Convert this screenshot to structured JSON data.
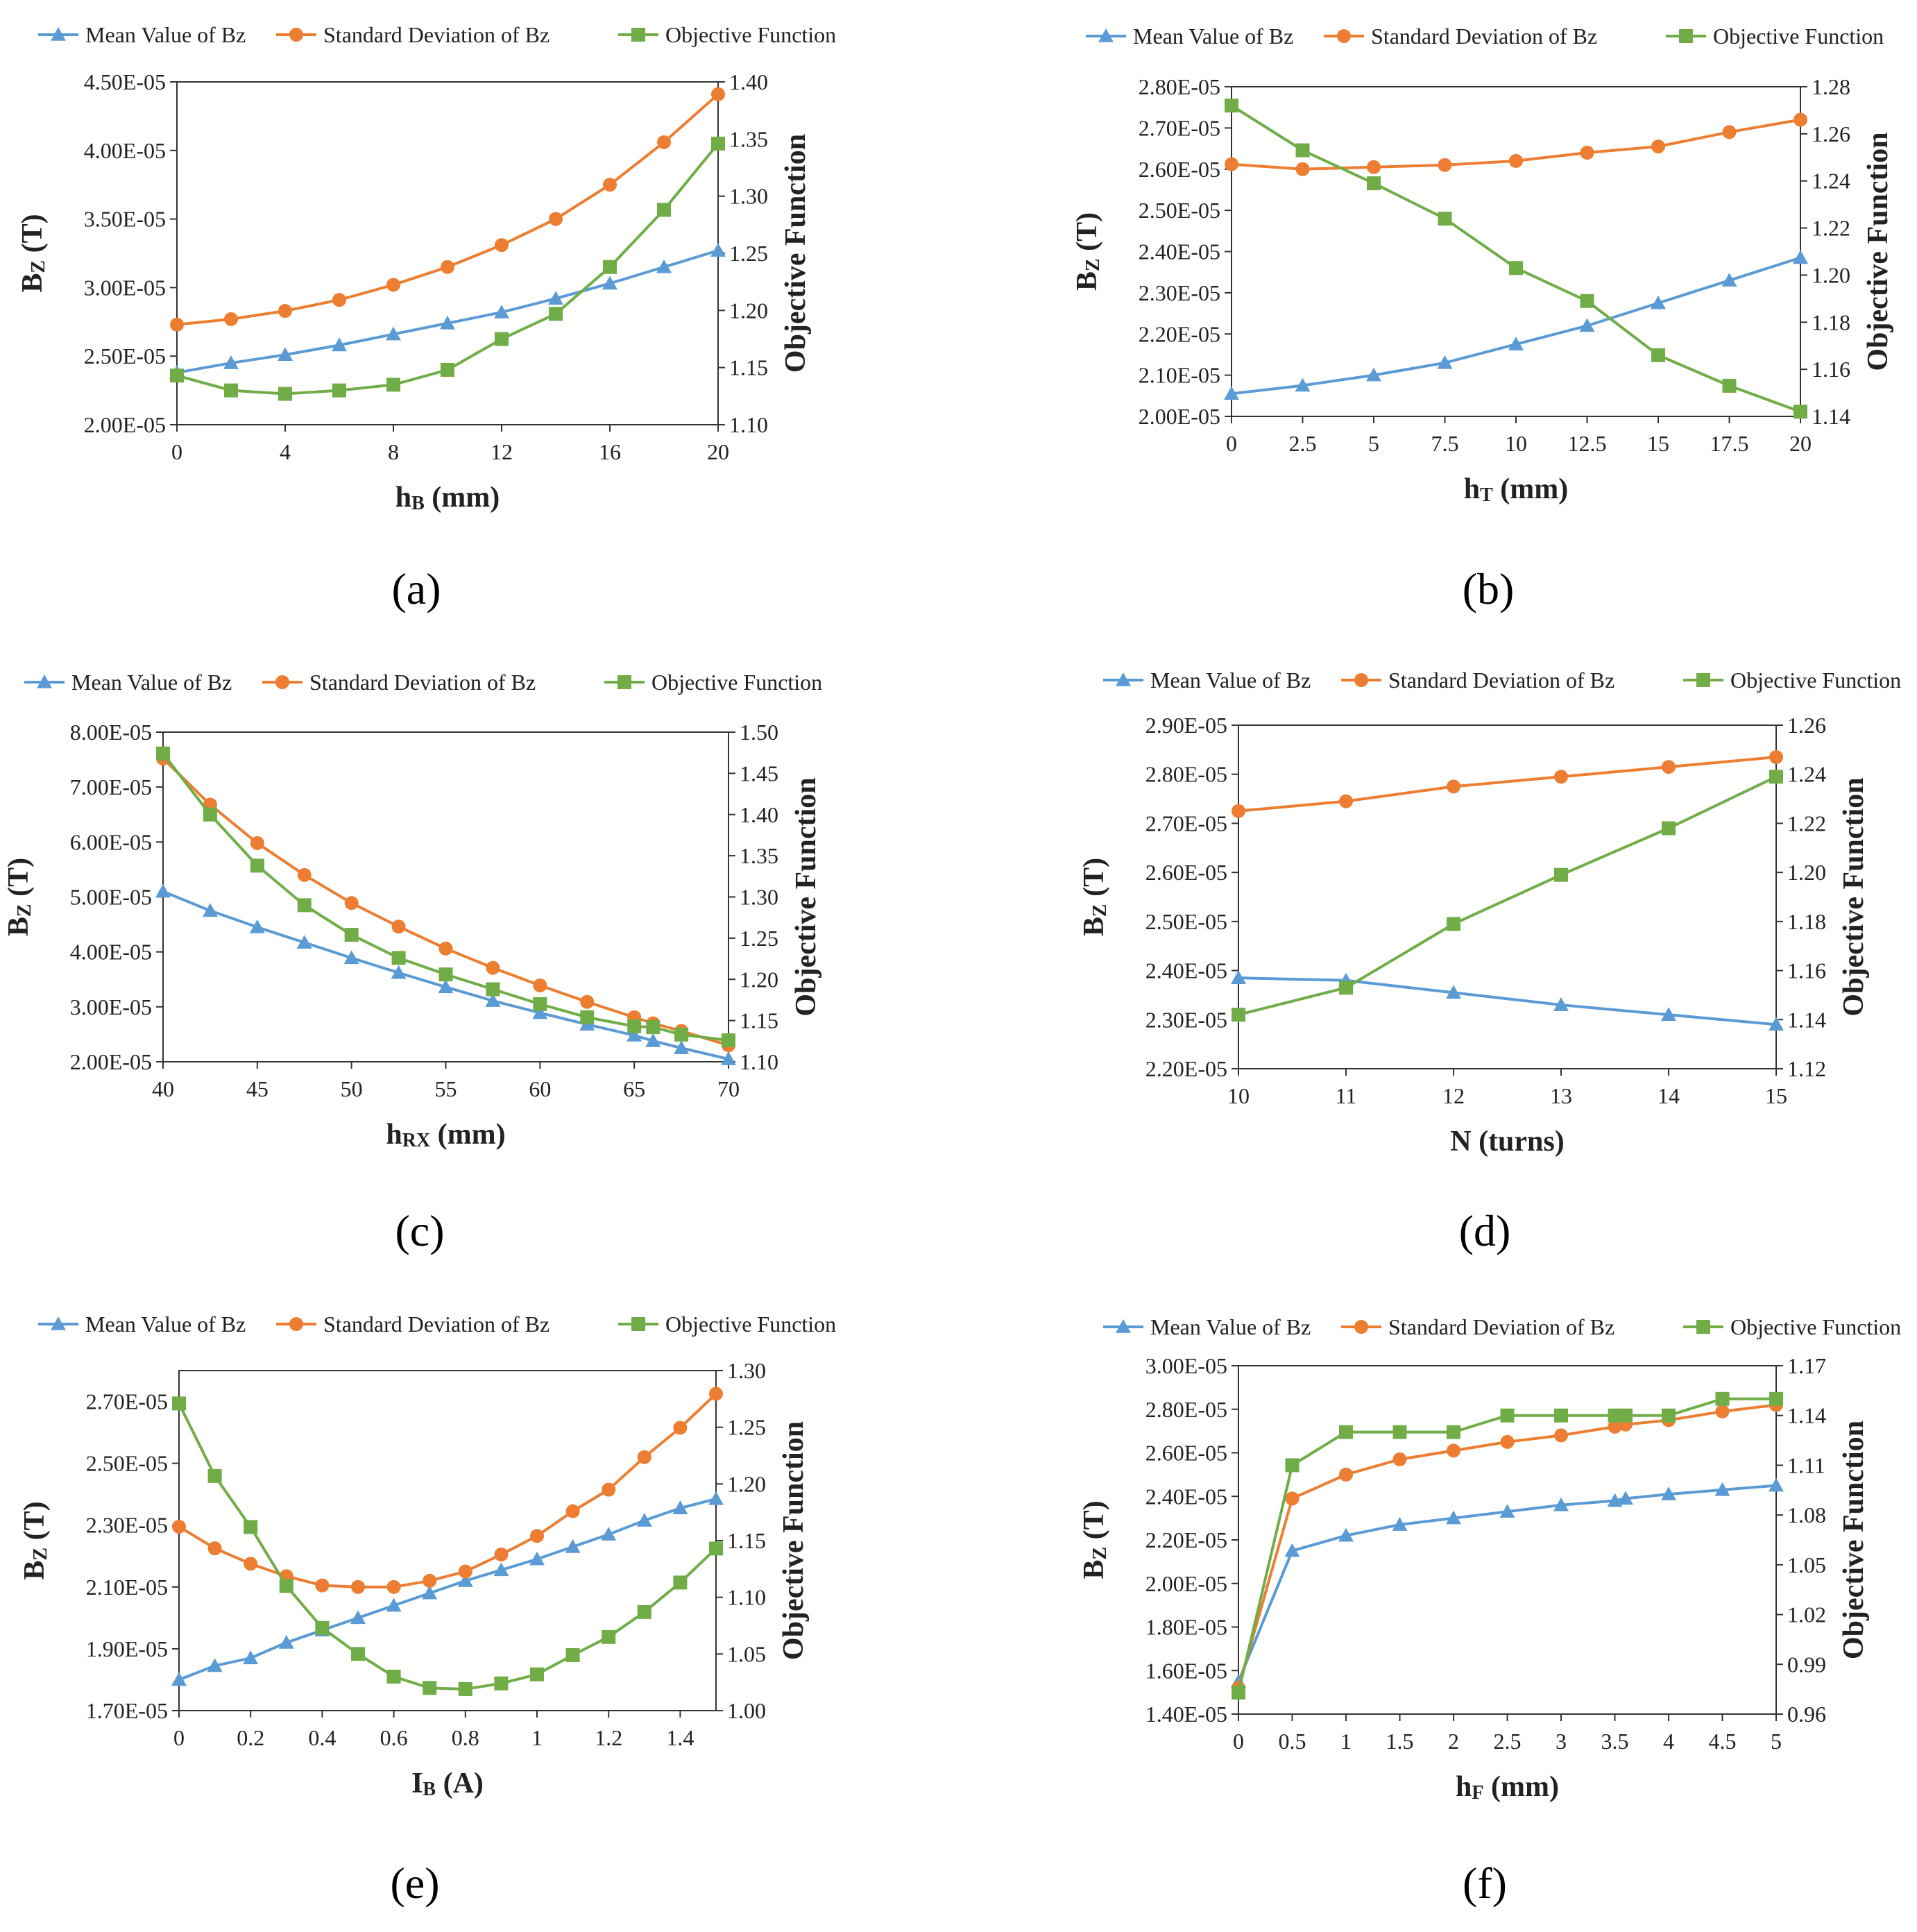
{
  "figure": {
    "legend": {
      "mean": "Mean Value of Bz",
      "std": "Standard Deviation of Bz",
      "obj": "Objective Function"
    },
    "colors": {
      "mean": "#5b9bd5",
      "std": "#ed7d31",
      "obj": "#70ad47",
      "axis": "#333333",
      "grid": "#dddddd"
    },
    "icons": {
      "mean": "triangle-marker",
      "std": "circle-marker",
      "obj": "square-marker"
    }
  },
  "chart_data": [
    {
      "type": "line",
      "panel": "(a)",
      "xlabel_main": "h",
      "xlabel_sub": "B",
      "xlabel_unit": " (mm)",
      "ylabel_main": "B",
      "ylabel_sub": "Z",
      "ylabel_unit": " (T)",
      "y2label": "Objective Function",
      "xlim": [
        0,
        20
      ],
      "xticks": [
        0,
        4,
        8,
        12,
        16,
        20
      ],
      "xtick_labels": [
        "0",
        "4",
        "8",
        "12",
        "16",
        "20"
      ],
      "ylim": [
        2e-05,
        4.5e-05
      ],
      "yticks": [
        2e-05,
        2.5e-05,
        3e-05,
        3.5e-05,
        4e-05,
        4.5e-05
      ],
      "ytick_labels": [
        "2.00E-05",
        "2.50E-05",
        "3.00E-05",
        "3.50E-05",
        "4.00E-05",
        "4.50E-05"
      ],
      "y2lim": [
        1.1,
        1.4
      ],
      "y2ticks": [
        1.1,
        1.15,
        1.2,
        1.25,
        1.3,
        1.35,
        1.4
      ],
      "y2tick_labels": [
        "1.10",
        "1.15",
        "1.20",
        "1.25",
        "1.30",
        "1.35",
        "1.40"
      ],
      "x": [
        0,
        2,
        4,
        6,
        8,
        10,
        12,
        14,
        16,
        18,
        20
      ],
      "series": [
        {
          "name": "Mean Value of Bz",
          "axis": "left",
          "values": [
            2.38e-05,
            2.45e-05,
            2.51e-05,
            2.58e-05,
            2.66e-05,
            2.74e-05,
            2.82e-05,
            2.92e-05,
            3.03e-05,
            3.15e-05,
            3.27e-05
          ]
        },
        {
          "name": "Standard Deviation of Bz",
          "axis": "left",
          "values": [
            2.73e-05,
            2.77e-05,
            2.83e-05,
            2.91e-05,
            3.02e-05,
            3.15e-05,
            3.31e-05,
            3.5e-05,
            3.75e-05,
            4.06e-05,
            4.41e-05
          ]
        },
        {
          "name": "Objective Function",
          "axis": "right",
          "values": [
            1.143,
            1.13,
            1.127,
            1.13,
            1.135,
            1.148,
            1.175,
            1.197,
            1.238,
            1.288,
            1.346
          ]
        }
      ]
    },
    {
      "type": "line",
      "panel": "(b)",
      "xlabel_main": "h",
      "xlabel_sub": "T",
      "xlabel_unit": " (mm)",
      "ylabel_main": "B",
      "ylabel_sub": "Z",
      "ylabel_unit": " (T)",
      "y2label": "Objective Function",
      "xlim": [
        0,
        20
      ],
      "xticks": [
        0,
        2.5,
        5,
        7.5,
        10,
        12.5,
        15,
        17.5,
        20
      ],
      "xtick_labels": [
        "0",
        "2.5",
        "5",
        "7.5",
        "10",
        "12.5",
        "15",
        "17.5",
        "20"
      ],
      "ylim": [
        2e-05,
        2.8e-05
      ],
      "yticks": [
        2e-05,
        2.1e-05,
        2.2e-05,
        2.3e-05,
        2.4e-05,
        2.5e-05,
        2.6e-05,
        2.7e-05,
        2.8e-05
      ],
      "ytick_labels": [
        "2.00E-05",
        "2.10E-05",
        "2.20E-05",
        "2.30E-05",
        "2.40E-05",
        "2.50E-05",
        "2.60E-05",
        "2.70E-05",
        "2.80E-05"
      ],
      "y2lim": [
        1.14,
        1.28
      ],
      "y2ticks": [
        1.14,
        1.16,
        1.18,
        1.2,
        1.22,
        1.24,
        1.26,
        1.28
      ],
      "y2tick_labels": [
        "1.14",
        "1.16",
        "1.18",
        "1.20",
        "1.22",
        "1.24",
        "1.26",
        "1.28"
      ],
      "x": [
        0,
        2.5,
        5,
        7.5,
        10,
        12.5,
        15,
        17.5,
        20
      ],
      "series": [
        {
          "name": "Mean Value of Bz",
          "axis": "left",
          "values": [
            2.055e-05,
            2.075e-05,
            2.1e-05,
            2.13e-05,
            2.175e-05,
            2.22e-05,
            2.275e-05,
            2.33e-05,
            2.385e-05
          ]
        },
        {
          "name": "Standard Deviation of Bz",
          "axis": "left",
          "values": [
            2.612e-05,
            2.6e-05,
            2.605e-05,
            2.61e-05,
            2.62e-05,
            2.64e-05,
            2.655e-05,
            2.69e-05,
            2.72e-05
          ]
        },
        {
          "name": "Objective Function",
          "axis": "right",
          "values": [
            1.272,
            1.253,
            1.239,
            1.224,
            1.203,
            1.189,
            1.166,
            1.153,
            1.142
          ]
        }
      ]
    },
    {
      "type": "line",
      "panel": "(c)",
      "xlabel_main": "h",
      "xlabel_sub": "RX",
      "xlabel_unit": " (mm)",
      "ylabel_main": "B",
      "ylabel_sub": "Z",
      "ylabel_unit": " (T)",
      "y2label": "Objective Function",
      "xlim": [
        40,
        70
      ],
      "xticks": [
        40,
        45,
        50,
        55,
        60,
        65,
        70
      ],
      "xtick_labels": [
        "40",
        "45",
        "50",
        "55",
        "60",
        "65",
        "70"
      ],
      "ylim": [
        2e-05,
        8e-05
      ],
      "yticks": [
        2e-05,
        3e-05,
        4e-05,
        5e-05,
        6e-05,
        7e-05,
        8e-05
      ],
      "ytick_labels": [
        "2.00E-05",
        "3.00E-05",
        "4.00E-05",
        "5.00E-05",
        "6.00E-05",
        "7.00E-05",
        "8.00E-05"
      ],
      "y2lim": [
        1.1,
        1.5
      ],
      "y2ticks": [
        1.1,
        1.15,
        1.2,
        1.25,
        1.3,
        1.35,
        1.4,
        1.45,
        1.5
      ],
      "y2tick_labels": [
        "1.10",
        "1.15",
        "1.20",
        "1.25",
        "1.30",
        "1.35",
        "1.40",
        "1.45",
        "1.50"
      ],
      "x": [
        40,
        42.5,
        45,
        47.5,
        50,
        52.5,
        55,
        57.5,
        60,
        62.5,
        65,
        66,
        67.5,
        70
      ],
      "series": [
        {
          "name": "Mean Value of Bz",
          "axis": "left",
          "values": [
            5.1e-05,
            4.75e-05,
            4.45e-05,
            4.17e-05,
            3.89e-05,
            3.62e-05,
            3.36e-05,
            3.11e-05,
            2.89e-05,
            2.68e-05,
            2.48e-05,
            2.38e-05,
            2.25e-05,
            2.05e-05
          ]
        },
        {
          "name": "Standard Deviation of Bz",
          "axis": "left",
          "values": [
            7.52e-05,
            6.68e-05,
            5.98e-05,
            5.4e-05,
            4.89e-05,
            4.46e-05,
            4.06e-05,
            3.71e-05,
            3.39e-05,
            3.09e-05,
            2.81e-05,
            2.7e-05,
            2.56e-05,
            2.3e-05
          ]
        },
        {
          "name": "Objective Function",
          "axis": "right",
          "values": [
            1.474,
            1.4,
            1.338,
            1.29,
            1.254,
            1.226,
            1.206,
            1.188,
            1.17,
            1.154,
            1.143,
            1.142,
            1.133,
            1.126
          ]
        }
      ]
    },
    {
      "type": "line",
      "panel": "(d)",
      "xlabel_main": "N",
      "xlabel_sub": "",
      "xlabel_unit": " (turns)",
      "ylabel_main": "B",
      "ylabel_sub": "Z",
      "ylabel_unit": " (T)",
      "y2label": "Objective Function",
      "xlim": [
        10,
        15
      ],
      "xticks": [
        10,
        11,
        12,
        13,
        14,
        15
      ],
      "xtick_labels": [
        "10",
        "11",
        "12",
        "13",
        "14",
        "15"
      ],
      "ylim": [
        2.2e-05,
        2.9e-05
      ],
      "yticks": [
        2.2e-05,
        2.3e-05,
        2.4e-05,
        2.5e-05,
        2.6e-05,
        2.7e-05,
        2.8e-05,
        2.9e-05
      ],
      "ytick_labels": [
        "2.20E-05",
        "2.30E-05",
        "2.40E-05",
        "2.50E-05",
        "2.60E-05",
        "2.70E-05",
        "2.80E-05",
        "2.90E-05"
      ],
      "y2lim": [
        1.12,
        1.26
      ],
      "y2ticks": [
        1.12,
        1.14,
        1.16,
        1.18,
        1.2,
        1.22,
        1.24,
        1.26
      ],
      "y2tick_labels": [
        "1.12",
        "1.14",
        "1.16",
        "1.18",
        "1.20",
        "1.22",
        "1.24",
        "1.26"
      ],
      "x": [
        10,
        11,
        12,
        13,
        14,
        15
      ],
      "series": [
        {
          "name": "Mean Value of Bz",
          "axis": "left",
          "values": [
            2.385e-05,
            2.38e-05,
            2.355e-05,
            2.33e-05,
            2.31e-05,
            2.29e-05
          ]
        },
        {
          "name": "Standard Deviation of Bz",
          "axis": "left",
          "values": [
            2.725e-05,
            2.745e-05,
            2.775e-05,
            2.795e-05,
            2.815e-05,
            2.835e-05
          ]
        },
        {
          "name": "Objective Function",
          "axis": "right",
          "values": [
            1.142,
            1.153,
            1.179,
            1.199,
            1.218,
            1.239
          ]
        }
      ]
    },
    {
      "type": "line",
      "panel": "(e)",
      "xlabel_main": "I",
      "xlabel_sub": "B",
      "xlabel_unit": " (A)",
      "ylabel_main": "B",
      "ylabel_sub": "Z",
      "ylabel_unit": " (T)",
      "y2label": "Objective Function",
      "xlim": [
        0,
        1.5
      ],
      "xticks": [
        0,
        0.2,
        0.4,
        0.6,
        0.8,
        1,
        1.2,
        1.4
      ],
      "xtick_labels": [
        "0",
        "0.2",
        "0.4",
        "0.6",
        "0.8",
        "1",
        "1.2",
        "1.4"
      ],
      "ylim": [
        1.7e-05,
        2.8e-05
      ],
      "yticks": [
        1.7e-05,
        1.9e-05,
        2.1e-05,
        2.3e-05,
        2.5e-05,
        2.7e-05
      ],
      "ytick_labels": [
        "1.70E-05",
        "1.90E-05",
        "2.10E-05",
        "2.30E-05",
        "2.50E-05",
        "2.70E-05"
      ],
      "y2lim": [
        1.0,
        1.3
      ],
      "y2ticks": [
        1.0,
        1.05,
        1.1,
        1.15,
        1.2,
        1.25,
        1.3
      ],
      "y2tick_labels": [
        "1.00",
        "1.05",
        "1.10",
        "1.15",
        "1.20",
        "1.25",
        "1.30"
      ],
      "x": [
        0,
        0.1,
        0.2,
        0.3,
        0.4,
        0.5,
        0.6,
        0.7,
        0.8,
        0.9,
        1.0,
        1.1,
        1.2,
        1.3,
        1.4,
        1.5
      ],
      "series": [
        {
          "name": "Mean Value of Bz",
          "axis": "left",
          "values": [
            1.8e-05,
            1.845e-05,
            1.87e-05,
            1.92e-05,
            1.96e-05,
            2e-05,
            2.04e-05,
            2.08e-05,
            2.12e-05,
            2.155e-05,
            2.19e-05,
            2.23e-05,
            2.27e-05,
            2.315e-05,
            2.355e-05,
            2.385e-05
          ]
        },
        {
          "name": "Standard Deviation of Bz",
          "axis": "left",
          "values": [
            2.295e-05,
            2.225e-05,
            2.175e-05,
            2.135e-05,
            2.105e-05,
            2.1e-05,
            2.1e-05,
            2.12e-05,
            2.15e-05,
            2.205e-05,
            2.265e-05,
            2.345e-05,
            2.415e-05,
            2.52e-05,
            2.615e-05,
            2.725e-05
          ]
        },
        {
          "name": "Objective Function",
          "axis": "right",
          "values": [
            1.271,
            1.207,
            1.162,
            1.11,
            1.073,
            1.05,
            1.03,
            1.02,
            1.019,
            1.024,
            1.032,
            1.049,
            1.065,
            1.087,
            1.113,
            1.143
          ]
        }
      ]
    },
    {
      "type": "line",
      "panel": "(f)",
      "xlabel_main": "h",
      "xlabel_sub": "F",
      "xlabel_unit": " (mm)",
      "ylabel_main": "B",
      "ylabel_sub": "Z",
      "ylabel_unit": " (T)",
      "y2label": "Objective Function",
      "xlim": [
        0,
        5
      ],
      "xticks": [
        0,
        0.5,
        1,
        1.5,
        2,
        2.5,
        3,
        3.5,
        4,
        4.5,
        5
      ],
      "xtick_labels": [
        "0",
        "0.5",
        "1",
        "1.5",
        "2",
        "2.5",
        "3",
        "3.5",
        "4",
        "4.5",
        "5"
      ],
      "ylim": [
        1.4e-05,
        3e-05
      ],
      "yticks": [
        1.4e-05,
        1.6e-05,
        1.8e-05,
        2e-05,
        2.2e-05,
        2.4e-05,
        2.6e-05,
        2.8e-05,
        3e-05
      ],
      "ytick_labels": [
        "1.40E-05",
        "1.60E-05",
        "1.80E-05",
        "2.00E-05",
        "2.20E-05",
        "2.40E-05",
        "2.60E-05",
        "2.80E-05",
        "3.00E-05"
      ],
      "y2lim": [
        0.96,
        1.17
      ],
      "y2ticks": [
        0.96,
        0.99,
        1.02,
        1.05,
        1.08,
        1.11,
        1.14,
        1.17
      ],
      "y2tick_labels": [
        "0.96",
        "0.99",
        "1.02",
        "1.05",
        "1.08",
        "1.11",
        "1.14",
        "1.17"
      ],
      "x": [
        0,
        0.5,
        1,
        1.5,
        2,
        2.5,
        3,
        3.5,
        3.6,
        4,
        4.5,
        5
      ],
      "series": [
        {
          "name": "Mean Value of Bz",
          "axis": "left",
          "values": [
            1.55e-05,
            2.15e-05,
            2.22e-05,
            2.27e-05,
            2.3e-05,
            2.33e-05,
            2.36e-05,
            2.38e-05,
            2.39e-05,
            2.41e-05,
            2.43e-05,
            2.45e-05
          ]
        },
        {
          "name": "Standard Deviation of Bz",
          "axis": "left",
          "values": [
            1.52e-05,
            2.39e-05,
            2.5e-05,
            2.57e-05,
            2.61e-05,
            2.65e-05,
            2.68e-05,
            2.72e-05,
            2.73e-05,
            2.75e-05,
            2.79e-05,
            2.82e-05
          ]
        },
        {
          "name": "Objective Function",
          "axis": "right",
          "values": [
            0.973,
            1.11,
            1.13,
            1.13,
            1.13,
            1.14,
            1.14,
            1.14,
            1.14,
            1.14,
            1.15,
            1.15
          ]
        }
      ]
    }
  ]
}
